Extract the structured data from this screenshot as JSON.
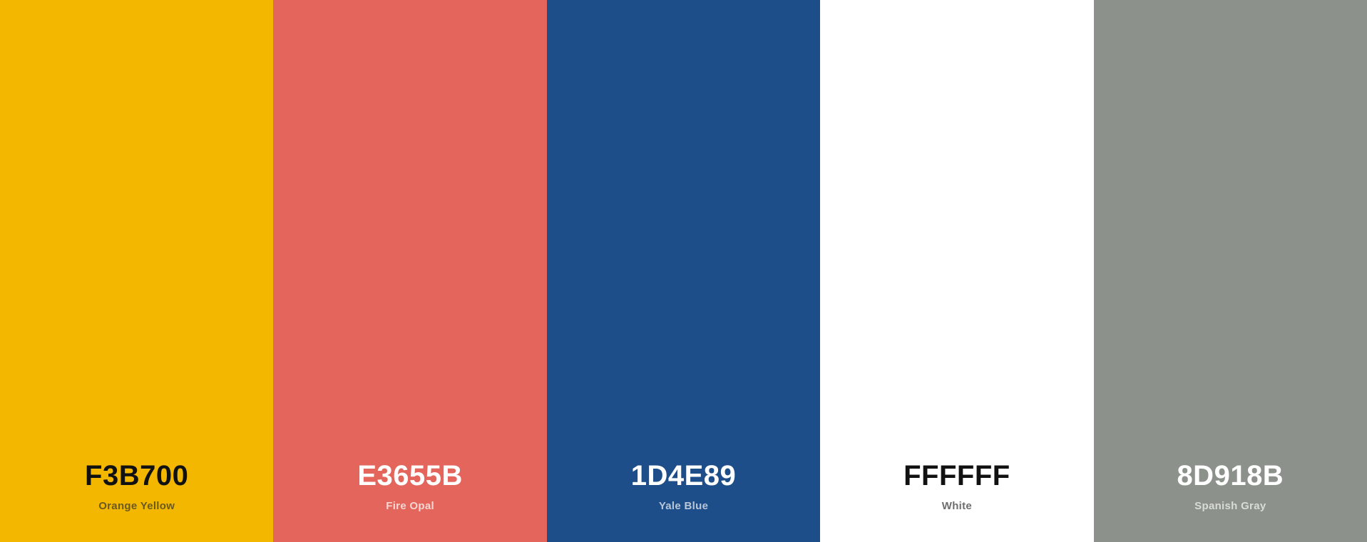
{
  "swatches": [
    {
      "hex": "F3B700",
      "name": "Orange Yellow",
      "color": "#F3B700",
      "hex_color": "#111111",
      "name_color": "#6b5a1e"
    },
    {
      "hex": "E3655B",
      "name": "Fire Opal",
      "color": "#E3655B",
      "hex_color": "#ffffff",
      "name_color": "#f6d6d2"
    },
    {
      "hex": "1D4E89",
      "name": "Yale Blue",
      "color": "#1D4E89",
      "hex_color": "#ffffff",
      "name_color": "#b9c6d9"
    },
    {
      "hex": "FFFFFF",
      "name": "White",
      "color": "#FFFFFF",
      "hex_color": "#111111",
      "name_color": "#6e6e6e"
    },
    {
      "hex": "8D918B",
      "name": "Spanish Gray",
      "color": "#8D918B",
      "hex_color": "#ffffff",
      "name_color": "#d9dbd8"
    }
  ]
}
